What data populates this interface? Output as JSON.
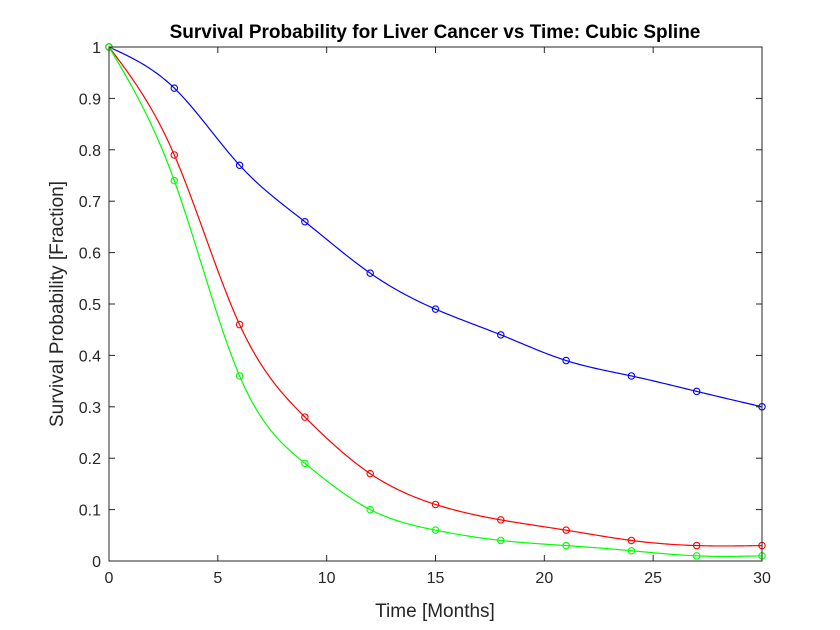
{
  "chart_data": {
    "type": "line",
    "title": "Survival Probability for Liver Cancer vs Time: Cubic Spline",
    "xlabel": "Time [Months]",
    "ylabel": "Survival Probability [Fraction]",
    "xlim": [
      0,
      30
    ],
    "ylim": [
      0,
      1
    ],
    "xticks": [
      0,
      5,
      10,
      15,
      20,
      25,
      30
    ],
    "yticks": [
      0,
      0.1,
      0.2,
      0.3,
      0.4,
      0.5,
      0.6,
      0.7,
      0.8,
      0.9,
      1
    ],
    "grid": false,
    "legend": "none",
    "interpolation": "cubic-spline",
    "x": [
      0,
      3,
      6,
      9,
      12,
      15,
      18,
      21,
      24,
      27,
      30
    ],
    "series": [
      {
        "color": "#0000ff",
        "values": [
          1,
          0.92,
          0.77,
          0.66,
          0.56,
          0.49,
          0.44,
          0.39,
          0.36,
          0.33,
          0.3
        ]
      },
      {
        "color": "#ff0000",
        "values": [
          1,
          0.79,
          0.46,
          0.28,
          0.17,
          0.11,
          0.08,
          0.06,
          0.04,
          0.03,
          0.03
        ]
      },
      {
        "color": "#00ff00",
        "values": [
          1,
          0.74,
          0.36,
          0.19,
          0.1,
          0.06,
          0.04,
          0.03,
          0.02,
          0.01,
          0.01
        ]
      }
    ]
  }
}
